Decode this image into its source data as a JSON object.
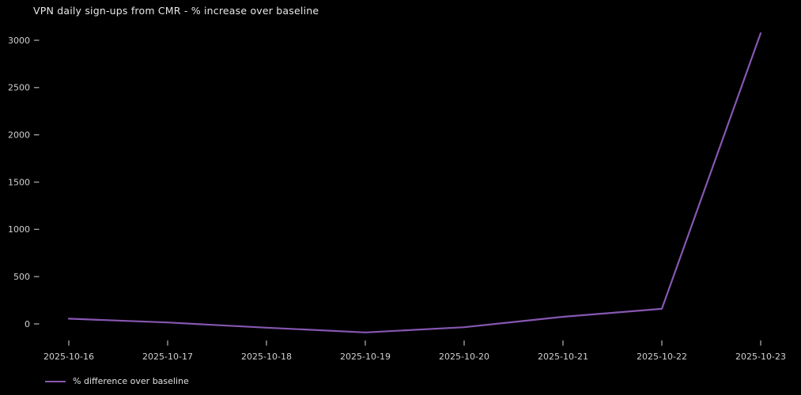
{
  "title": "VPN daily sign-ups from CMR - % increase over baseline",
  "legend": {
    "label": "% difference over baseline"
  },
  "colors": {
    "background": "#000000",
    "line": "#8757b2",
    "title_text": "#e8e8e8",
    "tick_label": "#d0d0d0",
    "tick_mark": "#a8a8a8"
  },
  "chart_data": {
    "type": "line",
    "title": "VPN daily sign-ups from CMR - % increase over baseline",
    "xlabel": "",
    "ylabel": "",
    "x": [
      "2025-10-16",
      "2025-10-17",
      "2025-10-18",
      "2025-10-19",
      "2025-10-20",
      "2025-10-21",
      "2025-10-22",
      "2025-10-23"
    ],
    "series": [
      {
        "name": "% difference over baseline",
        "values": [
          55,
          15,
          -40,
          -90,
          -35,
          75,
          160,
          3075
        ]
      }
    ],
    "y_ticks": [
      0,
      500,
      1000,
      1500,
      2000,
      2500,
      3000
    ],
    "ylim": [
      -245,
      3215
    ],
    "grid": false,
    "legend_position": "lower left",
    "line_color": "#8757b2",
    "background_color": "#000000"
  }
}
